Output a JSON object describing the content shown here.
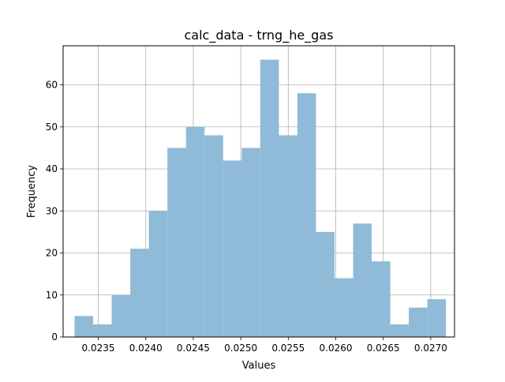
{
  "chart_data": {
    "type": "bar",
    "title": "calc_data - trng_he_gas",
    "xlabel": "Values",
    "ylabel": "Frequency",
    "xlim": [
      0.02313,
      0.02725
    ],
    "ylim": [
      0,
      69.3
    ],
    "xticks": [
      {
        "value": 0.0235,
        "label": "0.0235"
      },
      {
        "value": 0.024,
        "label": "0.0240"
      },
      {
        "value": 0.0245,
        "label": "0.0245"
      },
      {
        "value": 0.025,
        "label": "0.0250"
      },
      {
        "value": 0.0255,
        "label": "0.0255"
      },
      {
        "value": 0.026,
        "label": "0.0260"
      },
      {
        "value": 0.0265,
        "label": "0.0265"
      },
      {
        "value": 0.027,
        "label": "0.0270"
      }
    ],
    "yticks": [
      {
        "value": 0,
        "label": "0"
      },
      {
        "value": 10,
        "label": "10"
      },
      {
        "value": 20,
        "label": "20"
      },
      {
        "value": 30,
        "label": "30"
      },
      {
        "value": 40,
        "label": "40"
      },
      {
        "value": 50,
        "label": "50"
      },
      {
        "value": 60,
        "label": "60"
      }
    ],
    "bin_edges": [
      0.02325,
      0.023446,
      0.023641,
      0.023837,
      0.024032,
      0.024228,
      0.024423,
      0.024619,
      0.024814,
      0.02501,
      0.025205,
      0.025401,
      0.025596,
      0.025792,
      0.025987,
      0.026183,
      0.026378,
      0.026574,
      0.026769,
      0.026965,
      0.02716
    ],
    "values": [
      5,
      3,
      10,
      21,
      30,
      45,
      50,
      48,
      42,
      45,
      66,
      48,
      58,
      25,
      14,
      27,
      18,
      3,
      7,
      9
    ],
    "grid": true,
    "bar_color": "#8fbad8"
  }
}
